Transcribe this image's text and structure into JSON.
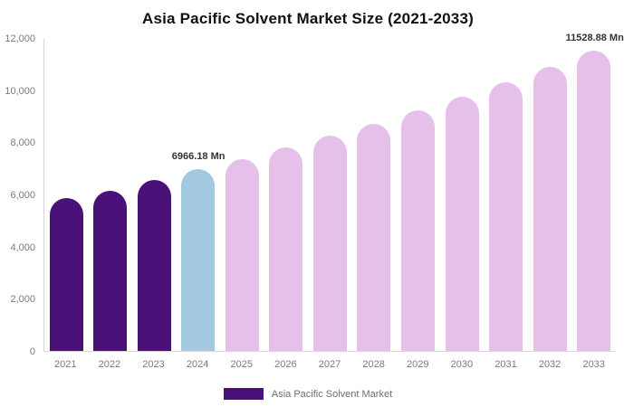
{
  "chart_data": {
    "type": "bar",
    "title": "Asia Pacific Solvent Market Size (2021-2033)",
    "xlabel": "",
    "ylabel": "",
    "categories": [
      "2021",
      "2022",
      "2023",
      "2024",
      "2025",
      "2026",
      "2027",
      "2028",
      "2029",
      "2030",
      "2031",
      "2032",
      "2033"
    ],
    "values": [
      5850,
      6150,
      6550,
      6966.18,
      7360,
      7790,
      8240,
      8710,
      9210,
      9750,
      10310,
      10900,
      11528.88
    ],
    "unit": "Mn",
    "bar_roles": [
      "historical",
      "historical",
      "historical",
      "base",
      "forecast",
      "forecast",
      "forecast",
      "forecast",
      "forecast",
      "forecast",
      "forecast",
      "forecast",
      "forecast"
    ],
    "role_colors": {
      "historical": "#4a1278",
      "base": "#a2c9e0",
      "forecast": "#e5c1ea"
    },
    "annotations": [
      {
        "index": 3,
        "text": "6966.18 Mn"
      },
      {
        "index": 12,
        "text": "11528.88 Mn"
      }
    ],
    "ylim": [
      0,
      12000
    ],
    "yticks": [
      {
        "label": "0",
        "value": 0
      },
      {
        "label": "2,000",
        "value": 2000
      },
      {
        "label": "4,000",
        "value": 4000
      },
      {
        "label": "6,000",
        "value": 6000
      },
      {
        "label": "8,000",
        "value": 8000
      },
      {
        "label": "10,000",
        "value": 10000
      },
      {
        "label": "12,000",
        "value": 12000
      }
    ],
    "grid": false,
    "legend": {
      "position": "bottom",
      "items": [
        {
          "label": "Asia Pacific Solvent Market",
          "color": "#4a1278"
        }
      ]
    },
    "colors": {
      "background": "#ffffff",
      "axis_line": "#d6d6d6",
      "tick_text": "#7a7a7a",
      "annotation_text": "#333333",
      "title_text": "#111111"
    }
  }
}
